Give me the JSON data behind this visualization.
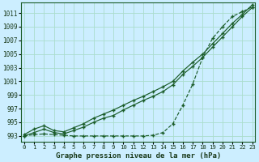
{
  "xlabel": "Graphe pression niveau de la mer (hPa)",
  "x_ticks": [
    0,
    1,
    2,
    3,
    4,
    5,
    6,
    7,
    8,
    9,
    10,
    11,
    12,
    13,
    14,
    15,
    16,
    17,
    18,
    19,
    20,
    21,
    22,
    23
  ],
  "y_ticks": [
    993,
    995,
    997,
    999,
    1001,
    1003,
    1005,
    1007,
    1009,
    1011
  ],
  "ylim": [
    992.2,
    1012.5
  ],
  "xlim": [
    -0.3,
    23.3
  ],
  "bg_color": "#cceeff",
  "grid_color": "#aaddcc",
  "line_color": "#1a5c28",
  "line_color_s": "#1a5c28",
  "series1": [
    993.2,
    994.0,
    994.5,
    993.8,
    993.6,
    994.2,
    994.8,
    995.6,
    996.2,
    996.8,
    997.5,
    998.2,
    998.8,
    999.5,
    1000.2,
    1001.0,
    1002.5,
    1003.8,
    1005.0,
    1006.5,
    1008.0,
    1009.5,
    1010.8,
    1012.2
  ],
  "series2": [
    993.0,
    993.5,
    994.0,
    993.5,
    993.3,
    993.8,
    994.3,
    995.0,
    995.6,
    996.0,
    996.8,
    997.5,
    998.2,
    998.8,
    999.5,
    1000.5,
    1002.0,
    1003.2,
    1004.5,
    1006.0,
    1007.5,
    1009.0,
    1010.5,
    1011.8
  ],
  "series3": [
    993.0,
    993.2,
    993.3,
    993.2,
    993.1,
    993.0,
    993.0,
    993.0,
    993.0,
    993.0,
    993.0,
    993.0,
    993.0,
    993.1,
    993.5,
    994.8,
    997.5,
    1000.6,
    1004.5,
    1007.3,
    1009.0,
    1010.5,
    1011.2,
    1011.9
  ]
}
